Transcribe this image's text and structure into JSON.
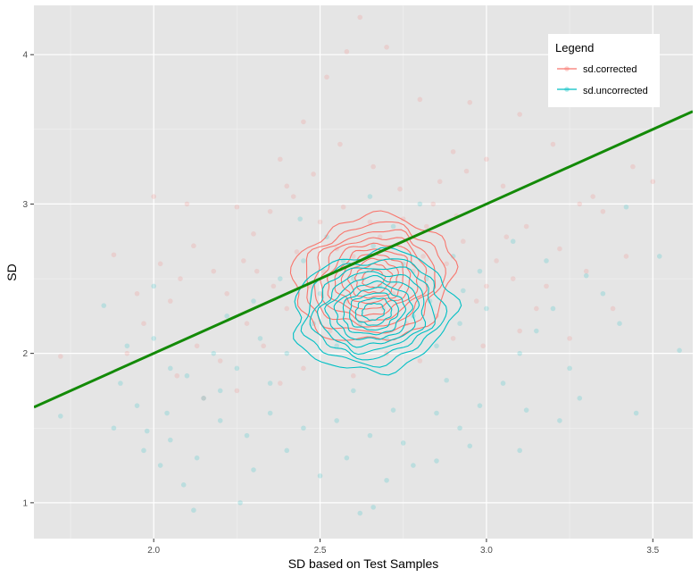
{
  "chart_data": {
    "type": "scatter",
    "xlabel": "SD based on Test Samples",
    "ylabel": "SD",
    "xlim": [
      1.64,
      3.62
    ],
    "ylim": [
      0.76,
      4.33
    ],
    "x_ticks": [
      2.0,
      2.5,
      3.0,
      3.5
    ],
    "x_tick_labels": [
      "2.0",
      "2.5",
      "3.0",
      "3.5"
    ],
    "y_ticks": [
      1,
      2,
      3,
      4
    ],
    "y_tick_labels": [
      "1",
      "2",
      "3",
      "4"
    ],
    "grid": true,
    "background": "#e5e5e5",
    "legend": {
      "title": "Legend",
      "placement": "top-right",
      "entries": [
        "sd.corrected",
        "sd.uncorrected"
      ]
    },
    "series": [
      {
        "name": "sd.corrected",
        "color": "#f8766d",
        "density_center": [
          2.66,
          2.5
        ],
        "density_spread": [
          0.24,
          0.42
        ],
        "points": [
          [
            2.62,
            4.25
          ],
          [
            2.7,
            4.05
          ],
          [
            2.58,
            4.02
          ],
          [
            2.52,
            3.85
          ],
          [
            2.8,
            3.7
          ],
          [
            2.95,
            3.68
          ],
          [
            2.45,
            3.55
          ],
          [
            3.1,
            3.6
          ],
          [
            2.38,
            3.3
          ],
          [
            2.9,
            3.35
          ],
          [
            3.2,
            3.4
          ],
          [
            2.0,
            3.05
          ],
          [
            2.1,
            3.0
          ],
          [
            2.25,
            2.98
          ],
          [
            3.05,
            3.12
          ],
          [
            3.28,
            3.0
          ],
          [
            1.88,
            2.66
          ],
          [
            1.95,
            2.4
          ],
          [
            1.97,
            2.2
          ],
          [
            2.05,
            2.35
          ],
          [
            2.12,
            2.72
          ],
          [
            2.18,
            2.55
          ],
          [
            2.3,
            2.8
          ],
          [
            2.35,
            2.95
          ],
          [
            2.42,
            3.05
          ],
          [
            2.5,
            2.88
          ],
          [
            2.55,
            2.7
          ],
          [
            2.6,
            2.65
          ],
          [
            2.68,
            2.78
          ],
          [
            2.75,
            2.9
          ],
          [
            2.82,
            2.85
          ],
          [
            2.88,
            2.6
          ],
          [
            2.93,
            2.75
          ],
          [
            3.0,
            2.45
          ],
          [
            3.08,
            2.5
          ],
          [
            3.15,
            2.3
          ],
          [
            3.22,
            2.7
          ],
          [
            3.3,
            2.55
          ],
          [
            3.35,
            2.95
          ],
          [
            3.42,
            2.65
          ],
          [
            3.5,
            3.15
          ],
          [
            2.28,
            2.2
          ],
          [
            2.33,
            2.05
          ],
          [
            2.4,
            2.3
          ],
          [
            2.47,
            2.45
          ],
          [
            2.53,
            2.15
          ],
          [
            2.58,
            2.35
          ],
          [
            2.63,
            2.5
          ],
          [
            2.72,
            2.4
          ],
          [
            2.78,
            2.55
          ],
          [
            2.85,
            2.25
          ],
          [
            2.9,
            2.1
          ],
          [
            2.97,
            2.35
          ],
          [
            2.2,
            1.95
          ],
          [
            2.25,
            1.75
          ],
          [
            2.15,
            1.7
          ],
          [
            2.07,
            1.85
          ],
          [
            2.38,
            1.8
          ],
          [
            2.45,
            1.9
          ],
          [
            2.6,
            1.85
          ],
          [
            2.7,
            2.0
          ],
          [
            2.8,
            1.95
          ],
          [
            2.99,
            2.05
          ],
          [
            3.1,
            2.15
          ],
          [
            2.48,
            3.2
          ],
          [
            2.66,
            3.25
          ],
          [
            2.74,
            3.1
          ],
          [
            2.86,
            3.15
          ],
          [
            2.22,
            2.4
          ],
          [
            2.27,
            2.62
          ],
          [
            2.57,
            2.98
          ],
          [
            2.65,
            2.88
          ],
          [
            2.81,
            2.65
          ],
          [
            2.91,
            2.92
          ],
          [
            2.13,
            2.05
          ],
          [
            1.92,
            2.0
          ],
          [
            1.72,
            1.98
          ],
          [
            3.38,
            2.3
          ],
          [
            3.25,
            2.1
          ],
          [
            3.18,
            2.45
          ],
          [
            3.12,
            2.85
          ],
          [
            3.03,
            2.62
          ],
          [
            2.69,
            2.3
          ],
          [
            2.76,
            2.2
          ],
          [
            2.51,
            2.55
          ],
          [
            2.43,
            2.68
          ],
          [
            2.36,
            2.45
          ],
          [
            2.31,
            2.55
          ],
          [
            2.84,
            3.0
          ],
          [
            2.94,
            3.22
          ],
          [
            3.0,
            3.3
          ],
          [
            2.56,
            3.4
          ],
          [
            2.4,
            3.12
          ],
          [
            2.02,
            2.6
          ],
          [
            2.08,
            2.5
          ],
          [
            3.44,
            3.25
          ],
          [
            3.32,
            3.05
          ],
          [
            3.06,
            2.78
          ]
        ]
      },
      {
        "name": "sd.uncorrected",
        "color": "#00bfc4",
        "density_center": [
          2.66,
          2.28
        ],
        "density_spread": [
          0.24,
          0.4
        ],
        "points": [
          [
            2.62,
            0.93
          ],
          [
            2.26,
            1.0
          ],
          [
            2.12,
            0.95
          ],
          [
            2.09,
            1.12
          ],
          [
            2.02,
            1.25
          ],
          [
            2.05,
            1.42
          ],
          [
            1.98,
            1.48
          ],
          [
            1.88,
            1.5
          ],
          [
            1.72,
            1.58
          ],
          [
            2.5,
            1.18
          ],
          [
            2.7,
            1.15
          ],
          [
            2.85,
            1.28
          ],
          [
            3.1,
            1.35
          ],
          [
            3.28,
            1.7
          ],
          [
            3.45,
            1.6
          ],
          [
            3.52,
            2.65
          ],
          [
            3.42,
            2.98
          ],
          [
            3.3,
            2.52
          ],
          [
            3.2,
            2.3
          ],
          [
            3.15,
            2.15
          ],
          [
            3.1,
            2.0
          ],
          [
            3.05,
            1.8
          ],
          [
            2.98,
            1.65
          ],
          [
            2.92,
            1.5
          ],
          [
            2.85,
            1.6
          ],
          [
            2.75,
            1.4
          ],
          [
            2.65,
            1.45
          ],
          [
            2.55,
            1.55
          ],
          [
            2.45,
            1.5
          ],
          [
            2.35,
            1.6
          ],
          [
            2.28,
            1.45
          ],
          [
            2.2,
            1.55
          ],
          [
            2.15,
            1.7
          ],
          [
            2.1,
            1.85
          ],
          [
            2.18,
            2.0
          ],
          [
            2.25,
            1.9
          ],
          [
            2.32,
            2.1
          ],
          [
            2.4,
            2.0
          ],
          [
            2.48,
            2.2
          ],
          [
            2.55,
            2.05
          ],
          [
            2.62,
            2.2
          ],
          [
            2.7,
            2.1
          ],
          [
            2.78,
            2.25
          ],
          [
            2.85,
            2.05
          ],
          [
            2.92,
            2.2
          ],
          [
            3.0,
            2.3
          ],
          [
            2.5,
            2.4
          ],
          [
            2.6,
            2.5
          ],
          [
            2.68,
            2.45
          ],
          [
            2.75,
            2.6
          ],
          [
            2.82,
            2.5
          ],
          [
            2.9,
            2.65
          ],
          [
            2.98,
            2.55
          ],
          [
            2.45,
            2.62
          ],
          [
            2.38,
            2.5
          ],
          [
            2.3,
            2.35
          ],
          [
            2.22,
            2.25
          ],
          [
            1.9,
            1.8
          ],
          [
            1.95,
            1.65
          ],
          [
            2.0,
            2.1
          ],
          [
            2.72,
            2.85
          ],
          [
            2.8,
            3.0
          ],
          [
            2.65,
            3.05
          ],
          [
            3.08,
            2.75
          ],
          [
            3.18,
            2.62
          ],
          [
            3.35,
            2.4
          ],
          [
            2.4,
            1.35
          ],
          [
            2.58,
            1.3
          ],
          [
            2.78,
            1.25
          ],
          [
            2.95,
            1.38
          ],
          [
            3.22,
            1.55
          ],
          [
            1.97,
            1.35
          ],
          [
            2.04,
            1.6
          ],
          [
            2.13,
            1.3
          ],
          [
            2.88,
            1.82
          ],
          [
            2.6,
            1.75
          ],
          [
            2.35,
            1.8
          ],
          [
            2.2,
            1.75
          ],
          [
            3.4,
            2.2
          ],
          [
            3.25,
            1.9
          ],
          [
            2.52,
            2.78
          ],
          [
            2.44,
            2.9
          ],
          [
            2.57,
            2.62
          ],
          [
            2.66,
            2.72
          ],
          [
            2.83,
            2.35
          ],
          [
            2.93,
            2.42
          ],
          [
            2.05,
            1.9
          ],
          [
            1.92,
            2.05
          ],
          [
            1.85,
            2.32
          ],
          [
            2.72,
            1.62
          ],
          [
            3.12,
            1.62
          ],
          [
            2.3,
            1.22
          ],
          [
            2.66,
            0.97
          ],
          [
            3.58,
            2.02
          ],
          [
            2.0,
            2.45
          ]
        ]
      },
      {
        "name": "",
        "type": "line",
        "color": "#138a07",
        "x": [
          1.64,
          3.62
        ],
        "y": [
          1.64,
          3.62
        ]
      }
    ]
  }
}
